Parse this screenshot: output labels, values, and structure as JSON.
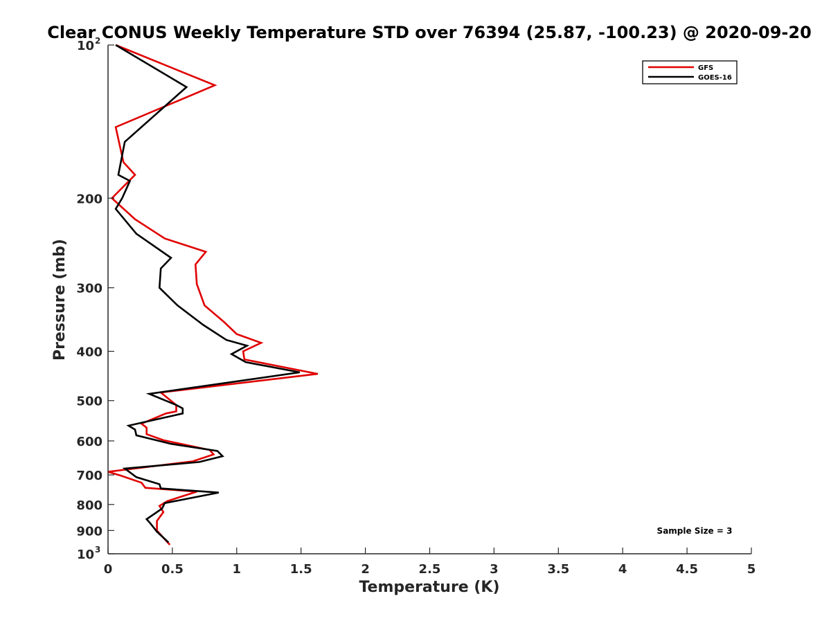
{
  "chart_data": {
    "type": "line",
    "title": "Clear CONUS Weekly Temperature STD over 76394 (25.87, -100.23) @ 2020-09-20",
    "xlabel": "Temperature (K)",
    "ylabel": "Pressure (mb)",
    "xlim": [
      0,
      5
    ],
    "ylim": [
      100,
      1000
    ],
    "yscale": "log",
    "y_reversed": true,
    "grid": false,
    "legend_position": "top-right",
    "x_ticks": [
      "0",
      "0.5",
      "1",
      "1.5",
      "2",
      "2.5",
      "3",
      "3.5",
      "4",
      "4.5",
      "5"
    ],
    "y_ticks": [
      {
        "value": 100,
        "base": "10",
        "sup": "2"
      },
      {
        "value": 200,
        "base": "200",
        "sup": ""
      },
      {
        "value": 300,
        "base": "300",
        "sup": ""
      },
      {
        "value": 400,
        "base": "400",
        "sup": ""
      },
      {
        "value": 500,
        "base": "500",
        "sup": ""
      },
      {
        "value": 600,
        "base": "600",
        "sup": ""
      },
      {
        "value": 700,
        "base": "700",
        "sup": ""
      },
      {
        "value": 800,
        "base": "800",
        "sup": ""
      },
      {
        "value": 900,
        "base": "900",
        "sup": ""
      },
      {
        "value": 1000,
        "base": "10",
        "sup": "3"
      }
    ],
    "series": [
      {
        "name": "GFS",
        "color": "#e00000",
        "points": [
          [
            0.06,
            100
          ],
          [
            0.83,
            120
          ],
          [
            0.06,
            145
          ],
          [
            0.12,
            170
          ],
          [
            0.21,
            180
          ],
          [
            0.03,
            200
          ],
          [
            0.21,
            220
          ],
          [
            0.44,
            240
          ],
          [
            0.76,
            255
          ],
          [
            0.68,
            270
          ],
          [
            0.69,
            295
          ],
          [
            0.75,
            325
          ],
          [
            0.9,
            350
          ],
          [
            1.0,
            370
          ],
          [
            1.19,
            385
          ],
          [
            1.05,
            400
          ],
          [
            1.06,
            415
          ],
          [
            1.63,
            443
          ],
          [
            0.41,
            482
          ],
          [
            0.53,
            510
          ],
          [
            0.53,
            525
          ],
          [
            0.45,
            530
          ],
          [
            0.26,
            555
          ],
          [
            0.3,
            565
          ],
          [
            0.3,
            582
          ],
          [
            0.43,
            598
          ],
          [
            0.79,
            625
          ],
          [
            0.82,
            638
          ],
          [
            0.66,
            658
          ],
          [
            0.0,
            690
          ],
          [
            0.1,
            702
          ],
          [
            0.26,
            725
          ],
          [
            0.29,
            742
          ],
          [
            0.69,
            755
          ],
          [
            0.46,
            788
          ],
          [
            0.4,
            805
          ],
          [
            0.43,
            828
          ],
          [
            0.38,
            862
          ],
          [
            0.38,
            900
          ],
          [
            0.48,
            960
          ]
        ]
      },
      {
        "name": "GOES-16",
        "color": "#000000",
        "points": [
          [
            0.06,
            100
          ],
          [
            0.61,
            121
          ],
          [
            0.13,
            155
          ],
          [
            0.08,
            180
          ],
          [
            0.17,
            185
          ],
          [
            0.11,
            200
          ],
          [
            0.06,
            210
          ],
          [
            0.22,
            235
          ],
          [
            0.49,
            262
          ],
          [
            0.41,
            275
          ],
          [
            0.4,
            300
          ],
          [
            0.54,
            325
          ],
          [
            0.74,
            355
          ],
          [
            0.92,
            380
          ],
          [
            1.08,
            390
          ],
          [
            0.96,
            405
          ],
          [
            1.07,
            420
          ],
          [
            1.49,
            440
          ],
          [
            0.32,
            485
          ],
          [
            0.53,
            510
          ],
          [
            0.58,
            518
          ],
          [
            0.58,
            530
          ],
          [
            0.16,
            560
          ],
          [
            0.21,
            570
          ],
          [
            0.22,
            585
          ],
          [
            0.49,
            608
          ],
          [
            0.85,
            628
          ],
          [
            0.89,
            643
          ],
          [
            0.71,
            660
          ],
          [
            0.13,
            680
          ],
          [
            0.22,
            707
          ],
          [
            0.4,
            730
          ],
          [
            0.41,
            744
          ],
          [
            0.86,
            758
          ],
          [
            0.44,
            795
          ],
          [
            0.42,
            815
          ],
          [
            0.3,
            855
          ],
          [
            0.33,
            872
          ],
          [
            0.38,
            905
          ],
          [
            0.47,
            950
          ]
        ]
      }
    ],
    "annotations": [
      "Sample Size = 3"
    ]
  }
}
